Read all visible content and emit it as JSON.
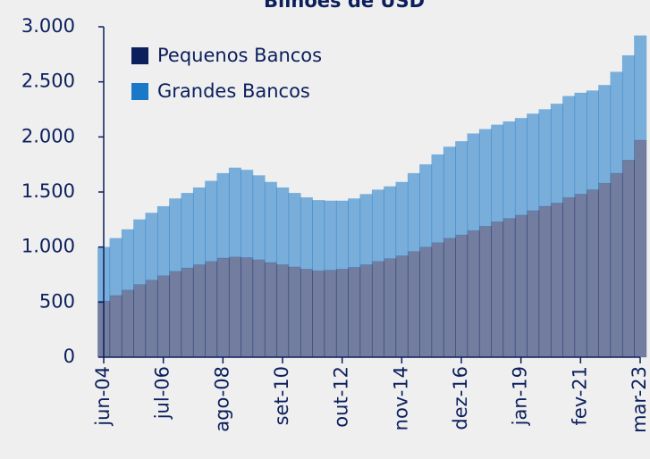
{
  "chart_data": {
    "type": "bar",
    "stacked": true,
    "title": "Bilhões de USD",
    "categories": [
      "jun-04",
      null,
      null,
      null,
      null,
      "jul-06",
      null,
      null,
      null,
      null,
      "ago-08",
      null,
      null,
      null,
      null,
      "set-10",
      null,
      null,
      null,
      null,
      "out-12",
      null,
      null,
      null,
      null,
      "nov-14",
      null,
      null,
      null,
      null,
      "dez-16",
      null,
      null,
      null,
      null,
      "jan-19",
      null,
      null,
      null,
      null,
      "fev-21",
      null,
      null,
      null,
      null,
      "mar-23"
    ],
    "series": [
      {
        "name": "Pequenos Bancos",
        "color": "#0b1f5c",
        "values": [
          510,
          560,
          610,
          660,
          700,
          740,
          780,
          810,
          840,
          870,
          900,
          910,
          905,
          885,
          860,
          840,
          820,
          800,
          785,
          790,
          800,
          815,
          840,
          870,
          895,
          920,
          960,
          1000,
          1040,
          1080,
          1110,
          1150,
          1190,
          1230,
          1260,
          1290,
          1330,
          1370,
          1400,
          1450,
          1480,
          1520,
          1580,
          1670,
          1790,
          1970
        ]
      },
      {
        "name": "Grandes Bancos",
        "color": "#1a78c8",
        "values": [
          490,
          520,
          550,
          590,
          610,
          630,
          660,
          680,
          700,
          730,
          770,
          810,
          795,
          765,
          730,
          700,
          670,
          650,
          640,
          630,
          620,
          625,
          640,
          650,
          655,
          670,
          710,
          750,
          800,
          830,
          850,
          880,
          880,
          880,
          880,
          880,
          880,
          880,
          900,
          920,
          920,
          900,
          890,
          920,
          950,
          950
        ]
      }
    ],
    "ylim": [
      0,
      3000
    ],
    "yticks": [
      0,
      500,
      {
        "value": 1000,
        "label": "1.000"
      },
      {
        "value": 1500,
        "label": "1.500"
      },
      {
        "value": 2000,
        "label": "2.000"
      },
      {
        "value": 2500,
        "label": "2.500"
      },
      {
        "value": 3000,
        "label": "3.000"
      }
    ],
    "legend": "upper left"
  }
}
